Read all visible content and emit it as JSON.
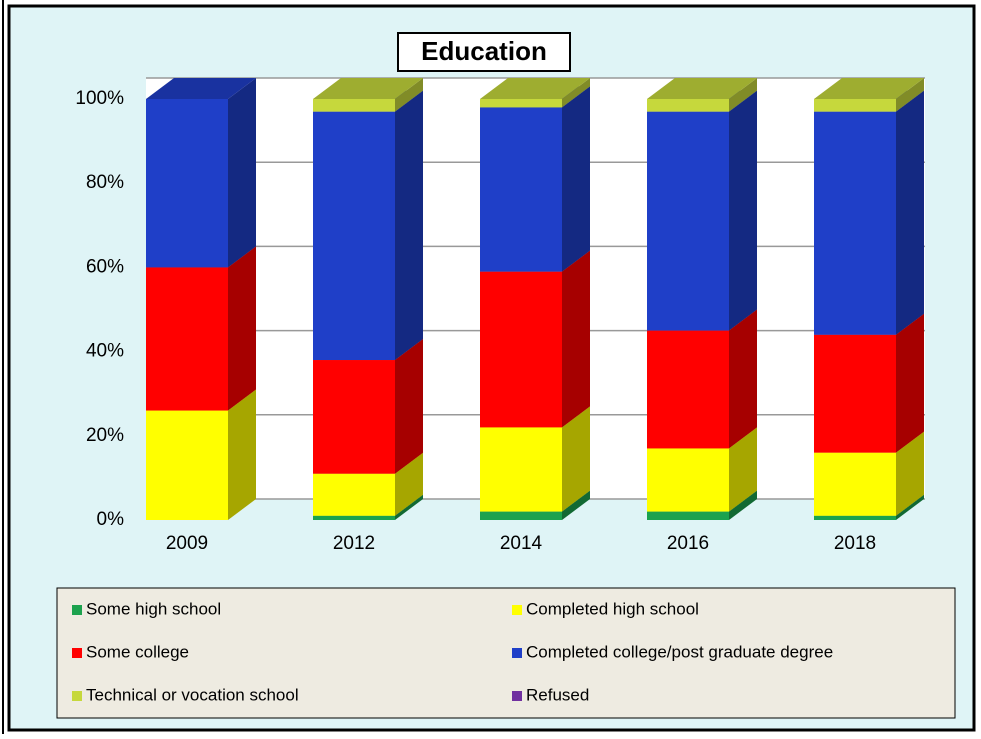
{
  "chart_data": {
    "type": "stacked_bar_3d",
    "title": "Education",
    "categories": [
      "2009",
      "2012",
      "2014",
      "2016",
      "2018"
    ],
    "series": [
      {
        "name": "Some high school",
        "color": "#1ca24e",
        "values": [
          0,
          1,
          2,
          2,
          1
        ]
      },
      {
        "name": "Completed high school",
        "color": "#ffff00",
        "values": [
          26,
          10,
          20,
          15,
          15
        ]
      },
      {
        "name": "Some college",
        "color": "#ff0000",
        "values": [
          34,
          27,
          37,
          28,
          28
        ]
      },
      {
        "name": "Completed college/post graduate degree",
        "color": "#1f3fc8",
        "values": [
          40,
          59,
          39,
          52,
          53
        ]
      },
      {
        "name": "Technical or vocation school",
        "color": "#c6d83c",
        "values": [
          0,
          3,
          2,
          3,
          3
        ]
      },
      {
        "name": "Refused",
        "color": "#7030a0",
        "values": [
          0,
          0,
          0,
          0,
          0
        ]
      }
    ],
    "ylim": [
      0,
      100
    ],
    "yticks": [
      {
        "value": 0,
        "label": "0%"
      },
      {
        "value": 20,
        "label": "20%"
      },
      {
        "value": 40,
        "label": "40%"
      },
      {
        "value": 60,
        "label": "60%"
      },
      {
        "value": 80,
        "label": "80%"
      },
      {
        "value": 100,
        "label": "100%"
      }
    ],
    "grid": true,
    "legend": "bottom"
  }
}
